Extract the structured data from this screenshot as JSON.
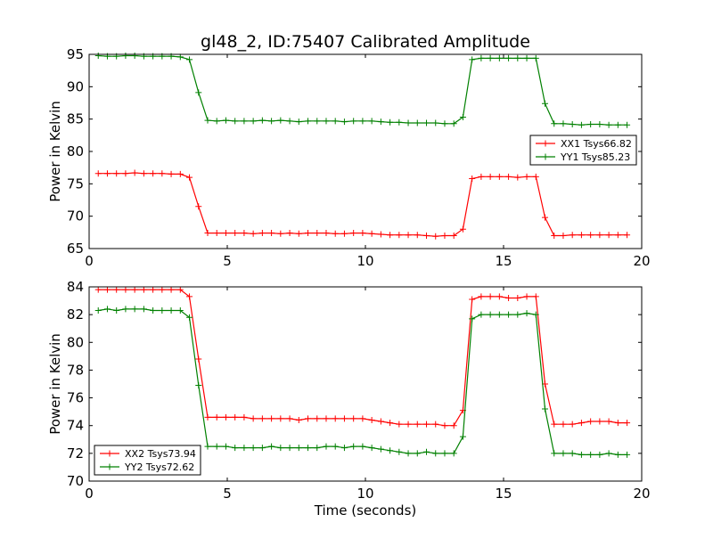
{
  "figure": {
    "title": "gl48_2, ID:75407 Calibrated Amplitude",
    "xlabel": "Time (seconds)",
    "ylabel": "Power in Kelvin"
  },
  "chart_data": [
    {
      "type": "line",
      "title": "gl48_2, ID:75407 Calibrated Amplitude",
      "xlabel": "",
      "ylabel": "Power in Kelvin",
      "xlim": [
        0,
        20
      ],
      "ylim": [
        65,
        95
      ],
      "xticks": [
        0,
        5,
        10,
        15,
        20
      ],
      "yticks": [
        65,
        70,
        75,
        80,
        85,
        90,
        95
      ],
      "grid": false,
      "legend": "center-right",
      "x": [
        0.33,
        0.66,
        0.99,
        1.32,
        1.65,
        1.98,
        2.31,
        2.64,
        2.97,
        3.3,
        3.63,
        3.96,
        4.29,
        4.62,
        4.95,
        5.28,
        5.61,
        5.94,
        6.27,
        6.6,
        6.93,
        7.26,
        7.59,
        7.92,
        8.25,
        8.58,
        8.91,
        9.24,
        9.57,
        9.9,
        10.23,
        10.56,
        10.89,
        11.22,
        11.55,
        11.88,
        12.21,
        12.54,
        12.87,
        13.2,
        13.53,
        13.86,
        14.19,
        14.52,
        14.85,
        15.18,
        15.51,
        15.84,
        16.17,
        16.5,
        16.83,
        17.16,
        17.49,
        17.82,
        18.15,
        18.48,
        18.81,
        19.14,
        19.47
      ],
      "series": [
        {
          "name": "XX1 Tsys66.82",
          "color": "#ff0000",
          "values": [
            76.6,
            76.6,
            76.6,
            76.6,
            76.7,
            76.6,
            76.6,
            76.6,
            76.5,
            76.5,
            76.0,
            71.5,
            67.4,
            67.4,
            67.4,
            67.4,
            67.4,
            67.3,
            67.4,
            67.4,
            67.3,
            67.4,
            67.3,
            67.4,
            67.4,
            67.4,
            67.3,
            67.3,
            67.4,
            67.4,
            67.3,
            67.2,
            67.1,
            67.1,
            67.1,
            67.1,
            67.0,
            66.9,
            67.0,
            67.0,
            68.0,
            75.8,
            76.1,
            76.1,
            76.1,
            76.1,
            76.0,
            76.1,
            76.1,
            69.8,
            67.0,
            67.0,
            67.1,
            67.1,
            67.1,
            67.1,
            67.1,
            67.1,
            67.1
          ]
        },
        {
          "name": "YY1 Tsys85.23",
          "color": "#008000",
          "values": [
            94.8,
            94.7,
            94.7,
            94.8,
            94.8,
            94.7,
            94.7,
            94.7,
            94.7,
            94.6,
            94.2,
            89.1,
            84.8,
            84.7,
            84.8,
            84.7,
            84.7,
            84.7,
            84.8,
            84.7,
            84.8,
            84.7,
            84.6,
            84.7,
            84.7,
            84.7,
            84.7,
            84.6,
            84.7,
            84.7,
            84.7,
            84.6,
            84.5,
            84.5,
            84.4,
            84.4,
            84.4,
            84.4,
            84.3,
            84.3,
            85.3,
            94.2,
            94.4,
            94.4,
            94.4,
            94.4,
            94.4,
            94.4,
            94.4,
            87.4,
            84.3,
            84.3,
            84.2,
            84.1,
            84.2,
            84.2,
            84.1,
            84.1,
            84.1
          ]
        }
      ]
    },
    {
      "type": "line",
      "title": "",
      "xlabel": "Time (seconds)",
      "ylabel": "Power in Kelvin",
      "xlim": [
        0,
        20
      ],
      "ylim": [
        70,
        84
      ],
      "xticks": [
        0,
        5,
        10,
        15,
        20
      ],
      "yticks": [
        70,
        72,
        74,
        76,
        78,
        80,
        82,
        84
      ],
      "grid": false,
      "legend": "lower-left",
      "x": [
        0.33,
        0.66,
        0.99,
        1.32,
        1.65,
        1.98,
        2.31,
        2.64,
        2.97,
        3.3,
        3.63,
        3.96,
        4.29,
        4.62,
        4.95,
        5.28,
        5.61,
        5.94,
        6.27,
        6.6,
        6.93,
        7.26,
        7.59,
        7.92,
        8.25,
        8.58,
        8.91,
        9.24,
        9.57,
        9.9,
        10.23,
        10.56,
        10.89,
        11.22,
        11.55,
        11.88,
        12.21,
        12.54,
        12.87,
        13.2,
        13.53,
        13.86,
        14.19,
        14.52,
        14.85,
        15.18,
        15.51,
        15.84,
        16.17,
        16.5,
        16.83,
        17.16,
        17.49,
        17.82,
        18.15,
        18.48,
        18.81,
        19.14,
        19.47
      ],
      "series": [
        {
          "name": "XX2 Tsys73.94",
          "color": "#ff0000",
          "values": [
            83.8,
            83.8,
            83.8,
            83.8,
            83.8,
            83.8,
            83.8,
            83.8,
            83.8,
            83.8,
            83.3,
            78.8,
            74.6,
            74.6,
            74.6,
            74.6,
            74.6,
            74.5,
            74.5,
            74.5,
            74.5,
            74.5,
            74.4,
            74.5,
            74.5,
            74.5,
            74.5,
            74.5,
            74.5,
            74.5,
            74.4,
            74.3,
            74.2,
            74.1,
            74.1,
            74.1,
            74.1,
            74.1,
            74.0,
            74.0,
            75.1,
            83.1,
            83.3,
            83.3,
            83.3,
            83.2,
            83.2,
            83.3,
            83.3,
            77.0,
            74.1,
            74.1,
            74.1,
            74.2,
            74.3,
            74.3,
            74.3,
            74.2,
            74.2
          ]
        },
        {
          "name": "YY2 Tsys72.62",
          "color": "#008000",
          "values": [
            82.3,
            82.4,
            82.3,
            82.4,
            82.4,
            82.4,
            82.3,
            82.3,
            82.3,
            82.3,
            81.8,
            76.9,
            72.5,
            72.5,
            72.5,
            72.4,
            72.4,
            72.4,
            72.4,
            72.5,
            72.4,
            72.4,
            72.4,
            72.4,
            72.4,
            72.5,
            72.5,
            72.4,
            72.5,
            72.5,
            72.4,
            72.3,
            72.2,
            72.1,
            72.0,
            72.0,
            72.1,
            72.0,
            72.0,
            72.0,
            73.2,
            81.7,
            82.0,
            82.0,
            82.0,
            82.0,
            82.0,
            82.1,
            82.0,
            75.2,
            72.0,
            72.0,
            72.0,
            71.9,
            71.9,
            71.9,
            72.0,
            71.9,
            71.9
          ]
        }
      ]
    }
  ]
}
